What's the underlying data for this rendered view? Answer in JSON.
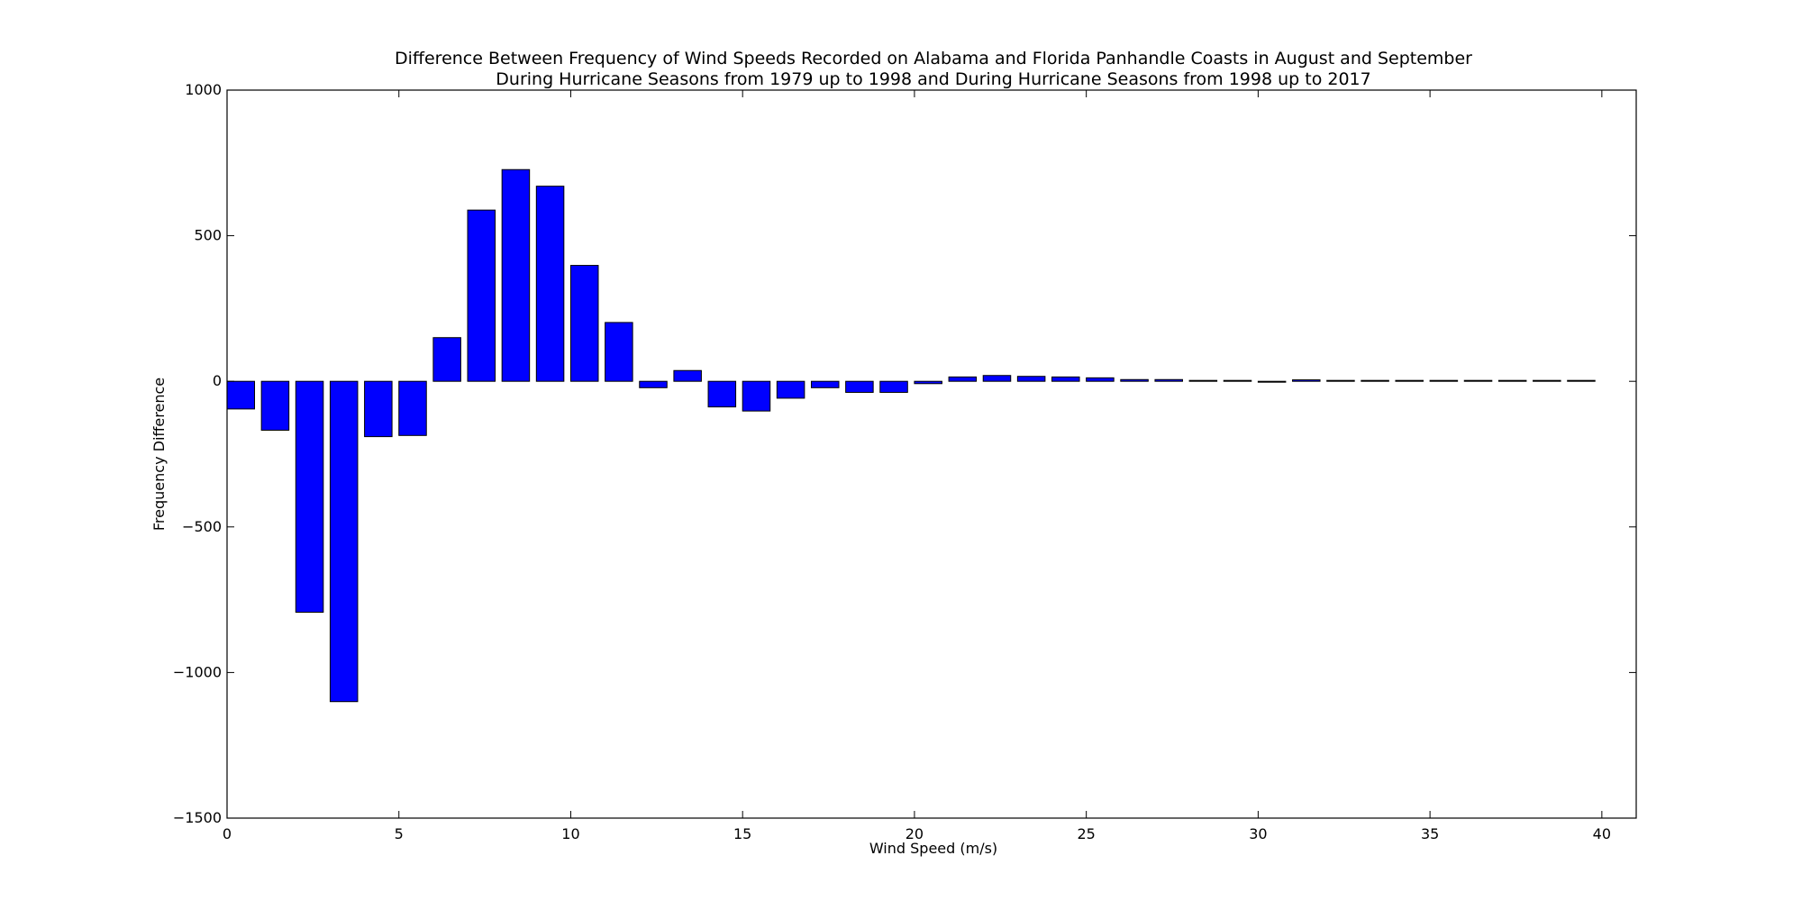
{
  "chart_data": {
    "type": "bar",
    "title": [
      "Difference Between Frequency of Wind Speeds Recorded on Alabama and Florida Panhandle Coasts in August and September",
      "During Hurricane Seasons from 1979 up to 1998 and During Hurricane Seasons from 1998 up to 2017"
    ],
    "xlabel": "Wind Speed (m/s)",
    "ylabel": "Frequency Difference",
    "xlim": [
      0,
      41
    ],
    "ylim": [
      -1500,
      1000
    ],
    "xticks": [
      0,
      5,
      10,
      15,
      20,
      25,
      30,
      35,
      40
    ],
    "xtick_labels": [
      "0",
      "5",
      "10",
      "15",
      "20",
      "25",
      "30",
      "35",
      "40"
    ],
    "yticks": [
      1000,
      500,
      0,
      -500,
      -1000,
      -1500
    ],
    "ytick_labels": [
      "1000",
      "500",
      "0",
      "−500",
      "−1000",
      "−1500"
    ],
    "bar_width": 0.8,
    "bar_color": "#0000ff",
    "edge_color": "#000000",
    "x": [
      0,
      1,
      2,
      3,
      4,
      5,
      6,
      7,
      8,
      9,
      10,
      11,
      12,
      13,
      14,
      15,
      16,
      17,
      18,
      19,
      20,
      21,
      22,
      23,
      24,
      25,
      26,
      27,
      28,
      29,
      30,
      31,
      32,
      33,
      34,
      35,
      36,
      37,
      38,
      39
    ],
    "values": [
      -95,
      -168,
      -793,
      -1100,
      -190,
      -186,
      150,
      588,
      727,
      670,
      398,
      202,
      -22,
      37,
      -88,
      -102,
      -58,
      -22,
      -38,
      -38,
      -8,
      15,
      20,
      17,
      15,
      12,
      6,
      6,
      3,
      3,
      -1,
      5,
      0,
      0,
      0,
      0,
      0,
      0,
      0,
      0
    ],
    "grid": false,
    "legend": "none"
  }
}
